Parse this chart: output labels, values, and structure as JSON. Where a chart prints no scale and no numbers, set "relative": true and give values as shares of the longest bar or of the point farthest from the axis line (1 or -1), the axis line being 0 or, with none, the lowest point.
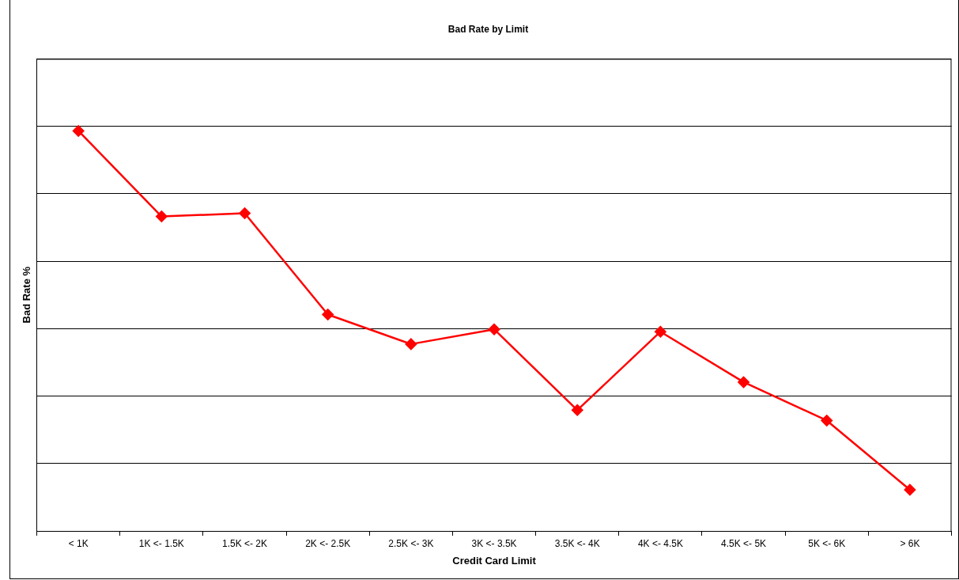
{
  "chart_data": {
    "type": "line",
    "title": "Bad Rate by Limit",
    "xlabel": "Credit Card Limit",
    "ylabel": "Bad Rate %",
    "categories": [
      "< 1K",
      "1K <- 1.5K",
      "1.5K <- 2K",
      "2K <- 2.5K",
      "2.5K <- 3K",
      "3K <- 3.5K",
      "3.5K <- 4K",
      "4K <- 4.5K",
      "4.5K <- 5K",
      "5K <- 6K",
      "> 6K"
    ],
    "series": [
      {
        "color": "#ff0000",
        "values": [
          1,
          0.786,
          0.794,
          0.541,
          0.467,
          0.504,
          0.302,
          0.498,
          0.372,
          0.276,
          0.103
        ]
      }
    ],
    "relative": true,
    "grid": "y",
    "marker": "diamond",
    "line_style": "solid",
    "legend": false
  }
}
